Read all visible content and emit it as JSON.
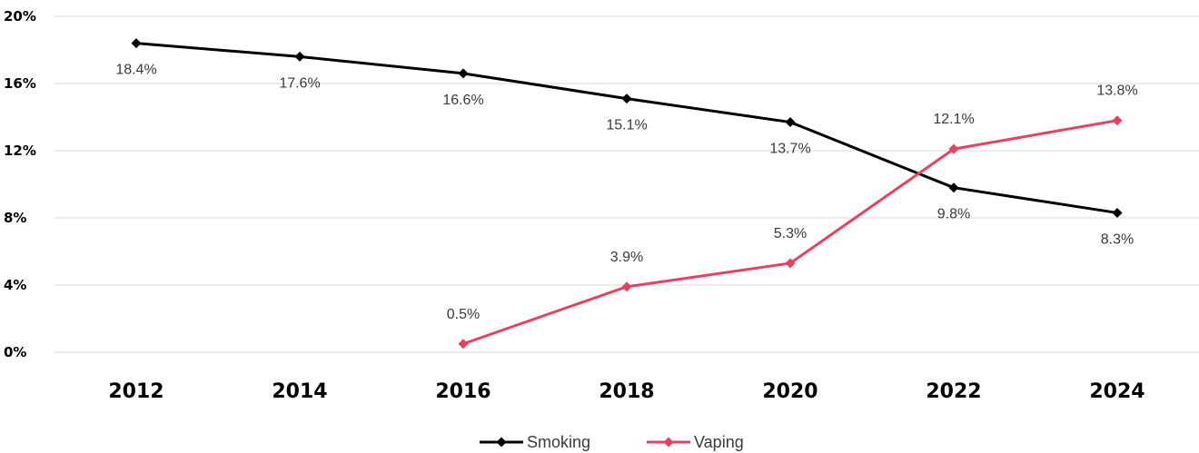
{
  "chart_data": {
    "type": "line",
    "categories": [
      "2012",
      "2014",
      "2016",
      "2018",
      "2020",
      "2022",
      "2024"
    ],
    "ylim": [
      0,
      20
    ],
    "yticks": [
      0,
      4,
      8,
      12,
      16,
      20
    ],
    "ytick_labels": [
      "0%",
      "4%",
      "8%",
      "12%",
      "16%",
      "20%"
    ],
    "grid": true,
    "legend_position": "bottom-center",
    "series": [
      {
        "name": "Smoking",
        "color": "#000000",
        "values": [
          18.4,
          17.6,
          16.6,
          15.1,
          13.7,
          9.8,
          8.3
        ],
        "labels": [
          "18.4%",
          "17.6%",
          "16.6%",
          "15.1%",
          "13.7%",
          "9.8%",
          "8.3%"
        ],
        "label_position": "below"
      },
      {
        "name": "Vaping",
        "color": "#e8405f",
        "values": [
          null,
          null,
          0.5,
          3.9,
          5.3,
          12.1,
          13.8
        ],
        "labels": [
          null,
          null,
          "0.5%",
          "3.9%",
          "5.3%",
          "12.1%",
          "13.8%"
        ],
        "label_position": "above"
      }
    ]
  }
}
